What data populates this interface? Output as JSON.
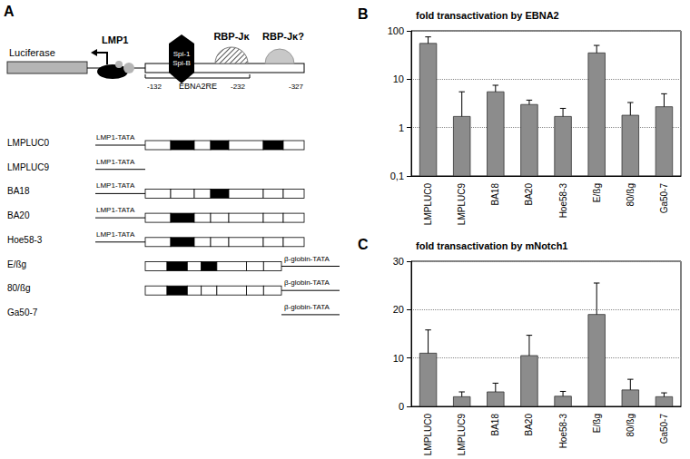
{
  "chart_data": [
    {
      "type": "bar",
      "panel": "B",
      "title": "fold transactivation by EBNA2",
      "categories": [
        "LMPLUC0",
        "LMPLUC9",
        "BA18",
        "BA20",
        "Hoe58-3",
        "E/ßg",
        "80/ßg",
        "Ga50-7"
      ],
      "values": [
        55,
        1.7,
        5.5,
        3,
        1.7,
        35,
        1.8,
        2.7
      ],
      "errors": [
        20,
        3.8,
        2,
        0.7,
        0.8,
        15,
        1.5,
        2.3
      ],
      "color": "#8c8c8c",
      "log": "y",
      "ylim": [
        0.1,
        100
      ],
      "yticks": [
        {
          "value": 0.1,
          "label": "0,1"
        },
        1,
        10,
        100
      ],
      "grid": true
    },
    {
      "type": "bar",
      "panel": "C",
      "title": "fold transactivation by mNotch1",
      "categories": [
        "LMPLUC0",
        "LMPLUC9",
        "BA18",
        "BA20",
        "Hoe58-3",
        "E/ßg",
        "80/ßg",
        "Ga50-7"
      ],
      "values": [
        11,
        2,
        3,
        10.5,
        2.1,
        19,
        3.4,
        2
      ],
      "errors": [
        4.8,
        1,
        1.8,
        4.2,
        1,
        6.5,
        2.2,
        0.8
      ],
      "color": "#8c8c8c",
      "ylim": [
        0,
        30
      ],
      "yticks": [
        0,
        10,
        20,
        30
      ],
      "grid": true
    }
  ],
  "diagram": {
    "panel": "A",
    "reporter": "Luciferase",
    "promoter": "LMP1",
    "factors": [
      "Spi-1",
      "Spi-B"
    ],
    "binding_sites": [
      "RBP-Jκ",
      "RBP-Jκ?"
    ],
    "positions": [
      "-132",
      "-232",
      "-327"
    ],
    "element": "EBNA2RE",
    "constructs": [
      {
        "name": "LMPLUC0",
        "promoter": "LMP1-TATA",
        "promoter_side": "left",
        "sites": [
          true,
          true,
          true
        ]
      },
      {
        "name": "LMPLUC9",
        "promoter": "LMP1-TATA",
        "promoter_side": "left",
        "sites": []
      },
      {
        "name": "BA18",
        "promoter": "LMP1-TATA",
        "promoter_side": "left",
        "sites": [
          false,
          true,
          false
        ]
      },
      {
        "name": "BA20",
        "promoter": "LMP1-TATA",
        "promoter_side": "left",
        "sites": [
          true,
          false,
          false
        ]
      },
      {
        "name": "Hoe58-3",
        "promoter": "LMP1-TATA",
        "promoter_side": "left",
        "sites": [
          true,
          false,
          false
        ]
      },
      {
        "name": "E/ßg",
        "promoter": "β-globin-TATA",
        "promoter_side": "right",
        "sites": [
          true,
          true,
          false
        ]
      },
      {
        "name": "80/ßg",
        "promoter": "β-globin-TATA",
        "promoter_side": "right",
        "sites": [
          true,
          false,
          false
        ]
      },
      {
        "name": "Ga50-7",
        "promoter": "β-globin-TATA",
        "promoter_side": "right",
        "sites": []
      }
    ]
  }
}
